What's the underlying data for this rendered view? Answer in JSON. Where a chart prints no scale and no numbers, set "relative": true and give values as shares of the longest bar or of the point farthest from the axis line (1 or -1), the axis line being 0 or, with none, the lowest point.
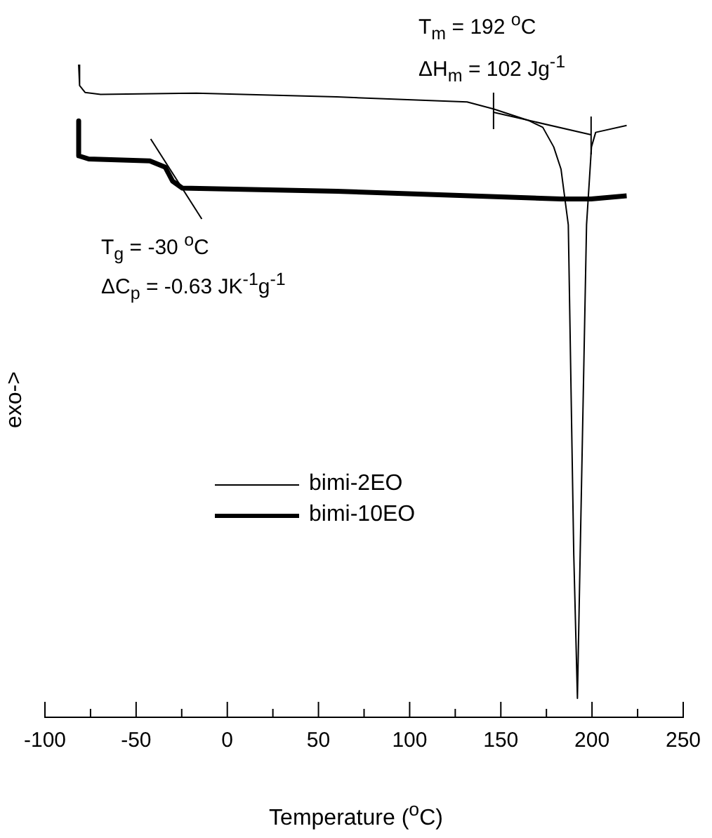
{
  "chart_data": {
    "type": "line",
    "relative": true,
    "xlabel": "Temperature ($^{o}$C)",
    "ylabel": "exo->",
    "xlim": [
      -100,
      250
    ],
    "xticks": [
      -100,
      {
        "value": -75,
        "label": null
      },
      -50,
      {
        "value": -25,
        "label": null
      },
      0,
      {
        "value": 25,
        "label": null
      },
      50,
      {
        "value": 75,
        "label": null
      },
      100,
      {
        "value": 125,
        "label": null
      },
      150,
      {
        "value": 175,
        "label": null
      },
      200,
      {
        "value": 225,
        "label": null
      },
      250
    ],
    "legend": "left",
    "marker": "none",
    "line_style": "solid",
    "annotations": [
      "T$_{m}$ = 192 $^{o}$C",
      "ΔH$_{m}$ = 102 Jg$^{-1}$",
      "T$_{g}$ = -30 $^{o}$C",
      "ΔC$_{p}$ = -0.63 JK$^{-1}$g$^{-1}$"
    ],
    "series": [
      {
        "name": "bimi-2EO",
        "color": "#000000",
        "x": [
          -81.5,
          -81,
          -78,
          -69.5,
          -17,
          60,
          131.5,
          146,
          165,
          173,
          179,
          183,
          187,
          190,
          192,
          193.5,
          197,
          199.7,
          202,
          219
        ],
        "values": [
          1.0,
          0.967,
          0.956,
          0.953,
          0.955,
          0.949,
          0.941,
          0.93,
          0.912,
          0.901,
          0.87,
          0.835,
          0.747,
          0.226,
          0,
          0.226,
          0.747,
          0.87,
          0.893,
          0.904
        ]
      },
      {
        "name": "bimi-10EO",
        "color": "#000000",
        "x": [
          -81.5,
          -81.5,
          -76,
          -42.5,
          -34,
          -30,
          -24.6,
          60,
          183,
          199.5,
          219
        ],
        "values": [
          0.911,
          0.856,
          0.851,
          0.848,
          0.838,
          0.816,
          0.805,
          0.8,
          0.788,
          0.788,
          0.793
        ]
      }
    ]
  }
}
